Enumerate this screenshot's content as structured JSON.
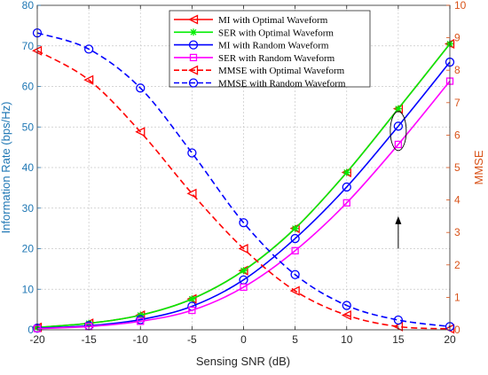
{
  "chart_data": {
    "type": "line",
    "xlabel": "Sensing SNR (dB)",
    "ylabel_left": "Information Rate (bps/Hz)",
    "ylabel_right": "MMSE",
    "x": [
      -20,
      -15,
      -10,
      -5,
      0,
      5,
      10,
      15,
      20
    ],
    "xlim": [
      -20,
      20
    ],
    "xticks": [
      -20,
      -15,
      -10,
      -5,
      0,
      5,
      10,
      15,
      20
    ],
    "ylim_left": [
      0,
      80
    ],
    "yticks_left": [
      0,
      10,
      20,
      30,
      40,
      50,
      60,
      70,
      80
    ],
    "ylim_right": [
      0,
      10
    ],
    "yticks_right": [
      0,
      1,
      2,
      3,
      4,
      5,
      6,
      7,
      8,
      9,
      10
    ],
    "grid": true,
    "legend_position": "top-center",
    "colors": {
      "left_axis": "#1f77b4",
      "right_axis": "#d95319"
    },
    "series": [
      {
        "name": "MI with Optimal Waveform",
        "axis": "left",
        "color": "#ff0000",
        "marker": "triangle-left",
        "dash": "solid",
        "values": [
          0.6,
          1.6,
          3.6,
          7.6,
          14.6,
          25.0,
          38.8,
          54.5,
          70.5
        ]
      },
      {
        "name": "SER with Optimal Waveform",
        "axis": "left",
        "color": "#00ee00",
        "marker": "star",
        "dash": "solid",
        "values": [
          0.6,
          1.6,
          3.6,
          7.6,
          14.6,
          25.0,
          38.8,
          54.5,
          70.5
        ]
      },
      {
        "name": "MI with Random Waveform",
        "axis": "left",
        "color": "#0000ff",
        "marker": "circle",
        "dash": "solid",
        "values": [
          0.4,
          1.0,
          2.5,
          5.8,
          12.3,
          22.5,
          35.2,
          50.2,
          66.0
        ]
      },
      {
        "name": "SER with Random Waveform",
        "axis": "left",
        "color": "#ff00ff",
        "marker": "square",
        "dash": "solid",
        "values": [
          0.3,
          0.8,
          2.1,
          4.8,
          10.5,
          19.5,
          31.3,
          45.7,
          61.3
        ]
      },
      {
        "name": "MMSE with Optimal Waveform",
        "axis": "right",
        "color": "#ff0000",
        "marker": "triangle-left",
        "dash": "dashed",
        "values": [
          8.6,
          7.7,
          6.1,
          4.2,
          2.5,
          1.2,
          0.45,
          0.1,
          0.03
        ]
      },
      {
        "name": "MMSE with Random Waveform",
        "axis": "right",
        "color": "#0000ff",
        "marker": "circle",
        "dash": "dashed",
        "values": [
          9.15,
          8.65,
          7.45,
          5.45,
          3.3,
          1.7,
          0.75,
          0.3,
          0.1
        ]
      }
    ],
    "annotations": [
      {
        "type": "ellipse",
        "x": 15,
        "y_left": 49
      },
      {
        "type": "arrow",
        "from_x": 15,
        "from_y_left": 20,
        "to_x": 15,
        "to_y_left": 28
      }
    ]
  }
}
